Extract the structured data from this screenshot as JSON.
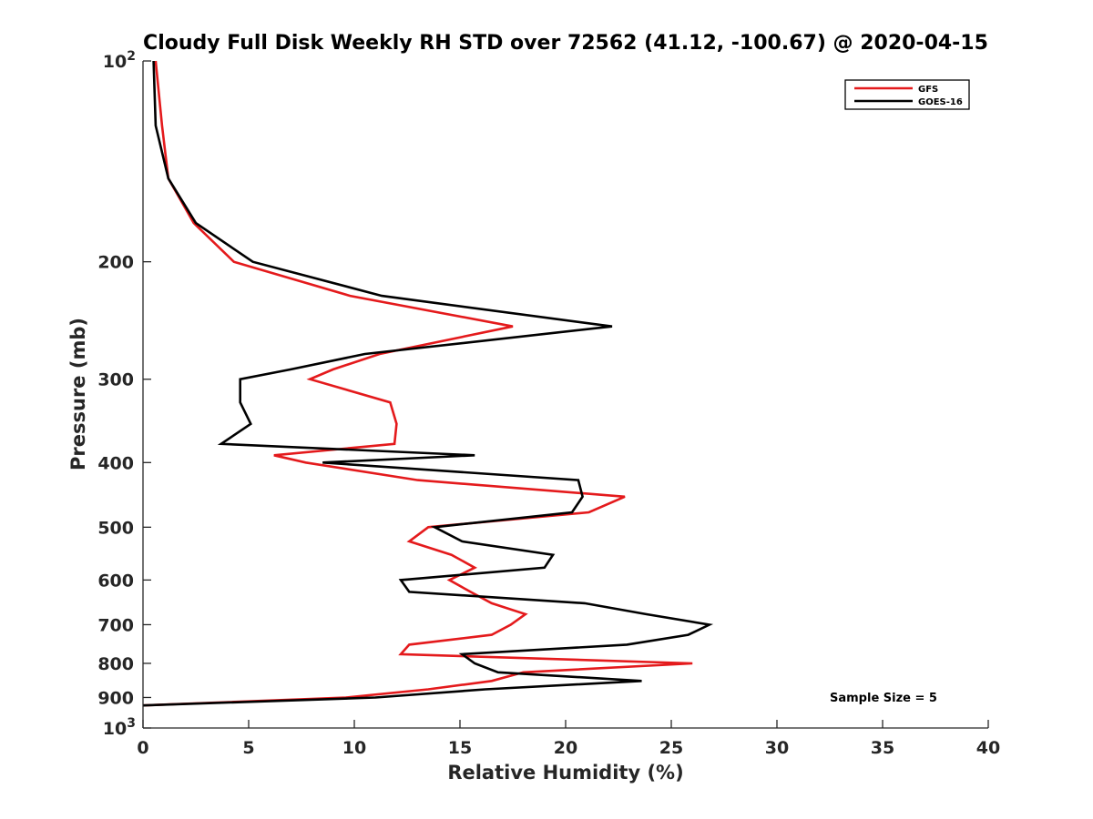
{
  "chart_data": {
    "type": "line",
    "title": "Cloudy Full Disk Weekly RH STD over 72562 (41.12, -100.67) @ 2020-04-15",
    "xlabel": "Relative Humidity (%)",
    "ylabel": "Pressure (mb)",
    "xlim": [
      0,
      40
    ],
    "ylim": [
      100,
      1000
    ],
    "y_scale": "log",
    "y_reversed": true,
    "grid": false,
    "legend_position": "top-right",
    "x_ticks": [
      "0",
      "5",
      "10",
      "15",
      "20",
      "25",
      "30",
      "35",
      "40"
    ],
    "y_ticks": [
      {
        "value": 100,
        "base": "10",
        "exp": "2"
      },
      {
        "value": 200,
        "label": "200"
      },
      {
        "value": 300,
        "label": "300"
      },
      {
        "value": 400,
        "label": "400"
      },
      {
        "value": 500,
        "label": "500"
      },
      {
        "value": 600,
        "label": "600"
      },
      {
        "value": 700,
        "label": "700"
      },
      {
        "value": 800,
        "label": "800"
      },
      {
        "value": 900,
        "label": "900"
      },
      {
        "value": 1000,
        "base": "10",
        "exp": "3"
      }
    ],
    "annotation": "Sample Size = 5",
    "series": [
      {
        "name": "GFS",
        "color": "#e41a1c",
        "points": [
          [
            0.6,
            100
          ],
          [
            0.9,
            125
          ],
          [
            1.2,
            150
          ],
          [
            2.4,
            175
          ],
          [
            4.3,
            200
          ],
          [
            9.8,
            225
          ],
          [
            17.5,
            250
          ],
          [
            11.2,
            275
          ],
          [
            9.0,
            290
          ],
          [
            7.9,
            300
          ],
          [
            11.7,
            325
          ],
          [
            12.0,
            350
          ],
          [
            11.9,
            375
          ],
          [
            6.2,
            390
          ],
          [
            7.7,
            400
          ],
          [
            13.0,
            425
          ],
          [
            22.8,
            450
          ],
          [
            21.1,
            475
          ],
          [
            13.5,
            500
          ],
          [
            12.6,
            525
          ],
          [
            14.6,
            550
          ],
          [
            15.7,
            575
          ],
          [
            14.5,
            600
          ],
          [
            15.5,
            625
          ],
          [
            16.5,
            650
          ],
          [
            18.1,
            675
          ],
          [
            17.4,
            700
          ],
          [
            16.5,
            725
          ],
          [
            12.6,
            750
          ],
          [
            12.2,
            775
          ],
          [
            26.0,
            800
          ],
          [
            18.0,
            825
          ],
          [
            16.5,
            850
          ],
          [
            13.5,
            875
          ],
          [
            9.6,
            900
          ],
          [
            0.0,
            925
          ]
        ]
      },
      {
        "name": "GOES-16",
        "color": "#000000",
        "points": [
          [
            0.5,
            100
          ],
          [
            0.6,
            125
          ],
          [
            1.2,
            150
          ],
          [
            2.5,
            175
          ],
          [
            5.2,
            200
          ],
          [
            11.3,
            225
          ],
          [
            22.2,
            250
          ],
          [
            10.5,
            275
          ],
          [
            7.0,
            290
          ],
          [
            4.6,
            300
          ],
          [
            4.6,
            325
          ],
          [
            5.1,
            350
          ],
          [
            3.7,
            375
          ],
          [
            15.7,
            390
          ],
          [
            8.5,
            400
          ],
          [
            20.6,
            425
          ],
          [
            20.8,
            450
          ],
          [
            20.3,
            475
          ],
          [
            13.8,
            500
          ],
          [
            15.1,
            525
          ],
          [
            19.4,
            550
          ],
          [
            19.0,
            575
          ],
          [
            12.2,
            600
          ],
          [
            12.6,
            625
          ],
          [
            20.9,
            650
          ],
          [
            23.8,
            675
          ],
          [
            26.8,
            700
          ],
          [
            25.8,
            725
          ],
          [
            22.9,
            750
          ],
          [
            15.1,
            775
          ],
          [
            15.7,
            800
          ],
          [
            16.8,
            825
          ],
          [
            23.6,
            850
          ],
          [
            16.2,
            875
          ],
          [
            11.0,
            900
          ],
          [
            0.0,
            925
          ]
        ]
      }
    ]
  }
}
